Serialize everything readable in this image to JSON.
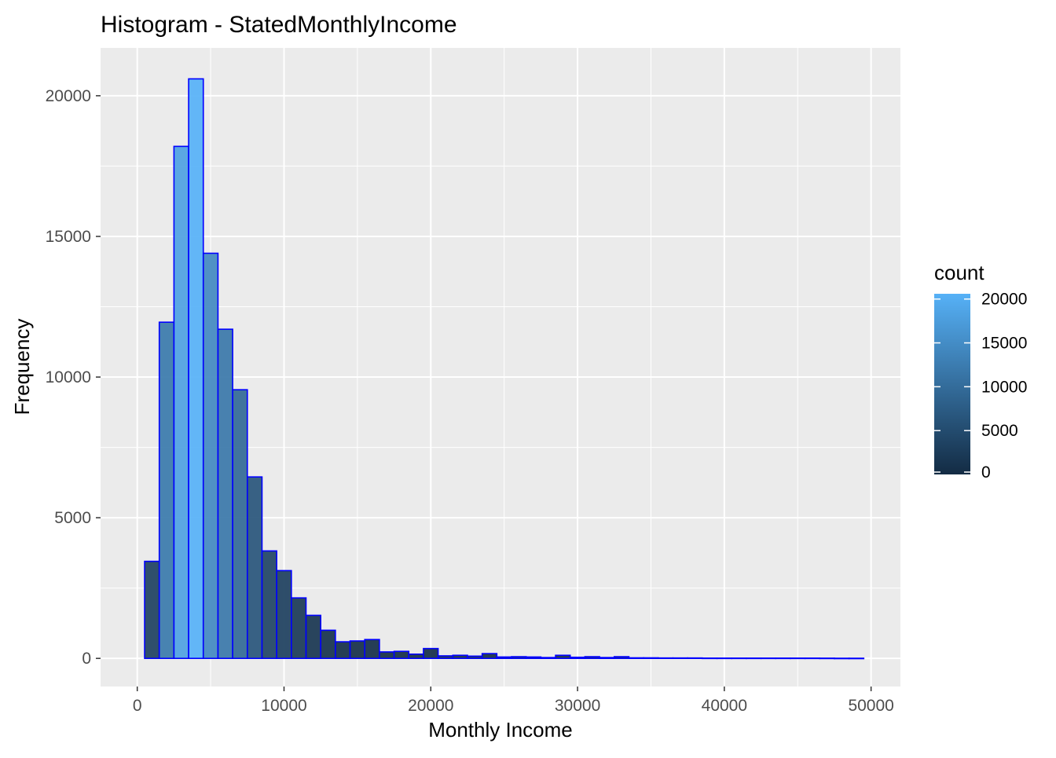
{
  "chart_data": {
    "type": "bar",
    "title": "Histogram - StatedMonthlyIncome",
    "xlabel": "Monthly Income",
    "ylabel": "Frequency",
    "xlim": [
      -2500,
      52000
    ],
    "ylim": [
      -1000,
      21700
    ],
    "x_ticks": [
      0,
      10000,
      20000,
      30000,
      40000,
      50000
    ],
    "x_tick_labels": [
      "0",
      "10000",
      "20000",
      "30000",
      "40000",
      "50000"
    ],
    "y_ticks": [
      0,
      5000,
      10000,
      15000,
      20000
    ],
    "y_tick_labels": [
      "0",
      "5000",
      "10000",
      "15000",
      "20000"
    ],
    "bin_width": 1000,
    "bin_starts": [
      500,
      1500,
      2500,
      3500,
      4500,
      5500,
      6500,
      7500,
      8500,
      9500,
      10500,
      11500,
      12500,
      13500,
      14500,
      15500,
      16500,
      17500,
      18500,
      19500,
      20500,
      21500,
      22500,
      23500,
      24500,
      25500,
      26500,
      27500,
      28500,
      29500,
      30500,
      31500,
      32500,
      33500,
      34500,
      35500,
      36500,
      37500,
      38500,
      39500,
      40500,
      41500,
      42500,
      43500,
      44500,
      45500,
      46500,
      47500,
      48500
    ],
    "values": [
      3450,
      11950,
      18200,
      20600,
      14400,
      11700,
      9550,
      6450,
      3820,
      3120,
      2150,
      1530,
      1000,
      590,
      620,
      670,
      230,
      250,
      150,
      350,
      90,
      110,
      80,
      170,
      50,
      60,
      50,
      30,
      110,
      40,
      60,
      30,
      60,
      20,
      20,
      15,
      15,
      15,
      10,
      10,
      10,
      10,
      10,
      10,
      10,
      10,
      8,
      5,
      5
    ],
    "grid": true,
    "legend": {
      "title": "count",
      "position": "right",
      "ticks": [
        0,
        5000,
        10000,
        15000,
        20000
      ],
      "tick_labels": [
        "0",
        "5000",
        "10000",
        "15000",
        "20000"
      ],
      "color_low": "#132b43",
      "color_high": "#56b1f7"
    },
    "bar_outline_color": "#0000ff",
    "panel_background": "#ebebeb",
    "grid_color": "#ffffff"
  }
}
